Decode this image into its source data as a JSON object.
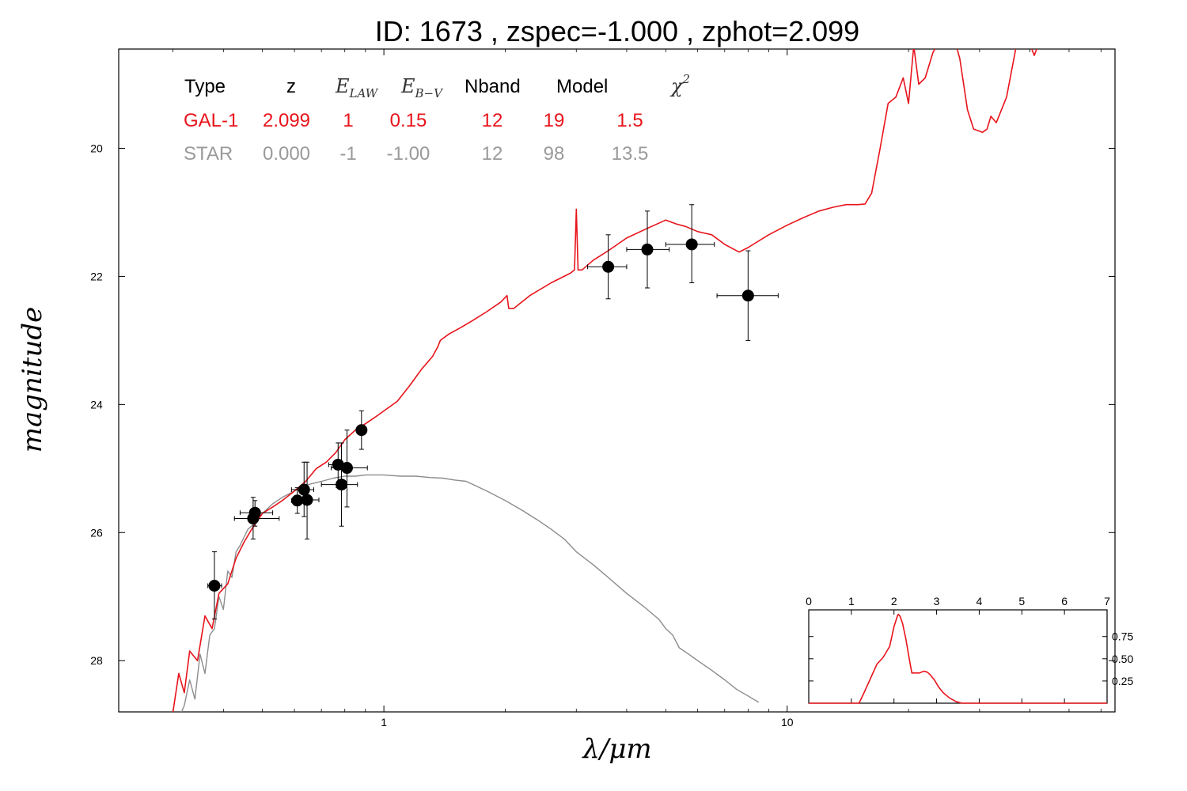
{
  "chart_data": [
    {
      "type": "line",
      "title": "ID:  1673  , zspec=-1.000 , zphot=2.099",
      "xlabel": "λ/μm",
      "ylabel": "magnitude",
      "x_scale": "log",
      "xlim": [
        0.22,
        65
      ],
      "ylim": [
        28.8,
        18.45
      ],
      "x_ticks": [
        1,
        10
      ],
      "x_tick_labels": [
        "1",
        "10"
      ],
      "y_ticks": [
        20,
        22,
        24,
        26,
        28
      ],
      "y_tick_labels": [
        "20",
        "22",
        "24",
        "26",
        "28"
      ],
      "grid": false,
      "colors": {
        "galaxy": "#e8141b",
        "star": "#8c8c8c",
        "points": "#000000"
      },
      "fit_table": {
        "headers": [
          "Type",
          "z",
          "E_LAW",
          "E_B-V",
          "Nband",
          "Model",
          "χ2"
        ],
        "header_plain": {
          "type": "Type",
          "z": "z",
          "nband": "Nband",
          "model": "Model"
        },
        "header_math": {
          "elaw_main": "E",
          "elaw_sub": "LAW",
          "ebv_main": "E",
          "ebv_sub": "B−V",
          "chi_main": "χ",
          "chi_sup": "2"
        },
        "rows": [
          {
            "type": "GAL-1",
            "z": "2.099",
            "elaw": "1",
            "ebv": "0.15",
            "nband": "12",
            "model": "19",
            "chi2": "1.5",
            "color": "#e8141b"
          },
          {
            "type": "STAR",
            "z": "0.000",
            "elaw": "-1",
            "ebv": "-1.00",
            "nband": "12",
            "model": "98",
            "chi2": "13.5",
            "color": "#9a9a9a"
          }
        ]
      },
      "points": [
        {
          "x": 0.38,
          "y": 26.83,
          "xerr": [
            0.366,
            0.396
          ],
          "yerr": [
            26.3,
            27.35
          ]
        },
        {
          "x": 0.474,
          "y": 25.78,
          "xerr": [
            0.426,
            0.55
          ],
          "yerr": [
            25.45,
            26.1
          ]
        },
        {
          "x": 0.479,
          "y": 25.69,
          "xerr": [
            0.44,
            0.53
          ],
          "yerr": [
            25.5,
            25.9
          ]
        },
        {
          "x": 0.61,
          "y": 25.5,
          "xerr": [
            0.59,
            0.63
          ],
          "yerr": [
            25.3,
            25.7
          ]
        },
        {
          "x": 0.634,
          "y": 25.33,
          "xerr": [
            0.59,
            0.67
          ],
          "yerr": [
            24.9,
            25.75
          ]
        },
        {
          "x": 0.645,
          "y": 25.49,
          "xerr": [
            0.6,
            0.69
          ],
          "yerr": [
            24.9,
            26.1
          ]
        },
        {
          "x": 0.77,
          "y": 24.94,
          "xerr": [
            0.73,
            0.79
          ],
          "yerr": [
            24.6,
            25.3
          ]
        },
        {
          "x": 0.785,
          "y": 25.25,
          "xerr": [
            0.7,
            0.86
          ],
          "yerr": [
            24.6,
            25.9
          ]
        },
        {
          "x": 0.81,
          "y": 24.99,
          "xerr": [
            0.74,
            0.91
          ],
          "yerr": [
            24.4,
            25.6
          ]
        },
        {
          "x": 0.88,
          "y": 24.4,
          "xerr": [
            0.86,
            0.9
          ],
          "yerr": [
            24.1,
            24.7
          ]
        },
        {
          "x": 3.6,
          "y": 21.85,
          "xerr": [
            3.2,
            4.0
          ],
          "yerr": [
            21.35,
            22.35
          ]
        },
        {
          "x": 4.5,
          "y": 21.58,
          "xerr": [
            4.0,
            5.1
          ],
          "yerr": [
            20.98,
            22.18
          ]
        },
        {
          "x": 5.8,
          "y": 21.5,
          "xerr": [
            5.0,
            6.6
          ],
          "yerr": [
            20.88,
            22.1
          ]
        },
        {
          "x": 8.0,
          "y": 22.3,
          "xerr": [
            6.7,
            9.5
          ],
          "yerr": [
            21.6,
            23.0
          ]
        }
      ],
      "series": [
        {
          "key": "galaxy",
          "x": [
            0.3,
            0.31,
            0.32,
            0.33,
            0.345,
            0.36,
            0.375,
            0.39,
            0.41,
            0.43,
            0.45,
            0.47,
            0.5,
            0.53,
            0.56,
            0.6,
            0.64,
            0.68,
            0.72,
            0.76,
            0.8,
            0.85,
            0.9,
            0.95,
            1.0,
            1.08,
            1.16,
            1.24,
            1.32,
            1.36,
            1.38,
            1.45,
            1.55,
            1.65,
            1.8,
            1.95,
            2.02,
            2.04,
            2.1,
            2.3,
            2.6,
            2.9,
            2.97,
            3.0,
            3.03,
            3.1,
            3.3,
            3.6,
            4.0,
            4.5,
            5.0,
            5.3,
            5.6,
            6.0,
            6.5,
            7.0,
            7.6,
            8.0,
            9.0,
            10.0,
            11.0,
            12.0,
            13.0,
            14.0,
            15.0,
            15.6,
            16.2,
            17.0,
            17.8,
            18.6,
            19.4,
            20.0,
            20.6,
            21.2,
            22.0,
            23.0,
            24.0,
            25.0,
            26.0,
            26.8,
            28.0,
            29.0,
            30.5,
            31.3,
            32.0,
            33.0,
            35.0,
            37.0,
            39.0,
            41.0,
            43.0,
            45.0,
            47.0,
            49.0,
            51.0,
            53.0,
            55.0,
            57.0
          ],
          "y": [
            28.8,
            28.2,
            28.5,
            27.85,
            28.0,
            27.3,
            27.5,
            26.95,
            26.8,
            26.4,
            26.15,
            25.95,
            25.7,
            25.6,
            25.5,
            25.35,
            25.2,
            25.0,
            24.9,
            24.75,
            24.55,
            24.4,
            24.3,
            24.2,
            24.1,
            23.95,
            23.7,
            23.45,
            23.25,
            23.1,
            23.0,
            22.9,
            22.8,
            22.7,
            22.55,
            22.4,
            22.3,
            22.5,
            22.5,
            22.3,
            22.1,
            21.95,
            21.9,
            20.95,
            21.9,
            21.9,
            21.75,
            21.6,
            21.4,
            21.25,
            21.12,
            21.18,
            21.22,
            21.3,
            21.35,
            21.5,
            21.62,
            21.55,
            21.35,
            21.2,
            21.08,
            20.98,
            20.92,
            20.88,
            20.88,
            20.87,
            20.7,
            20.0,
            19.3,
            19.2,
            18.9,
            19.3,
            18.4,
            19.0,
            18.9,
            18.5,
            18.3,
            18.15,
            18.3,
            18.6,
            19.4,
            19.7,
            19.75,
            19.7,
            19.5,
            19.6,
            19.2,
            18.4,
            18.2,
            18.55,
            18.2,
            18.05,
            18.3,
            18.15,
            18.0,
            18.2,
            17.9,
            18.0
          ]
        },
        {
          "key": "star",
          "x": [
            0.3,
            0.31,
            0.32,
            0.33,
            0.34,
            0.35,
            0.36,
            0.37,
            0.38,
            0.39,
            0.4,
            0.41,
            0.42,
            0.43,
            0.44,
            0.46,
            0.48,
            0.5,
            0.53,
            0.56,
            0.6,
            0.65,
            0.7,
            0.75,
            0.8,
            0.85,
            0.9,
            0.95,
            1.0,
            1.1,
            1.2,
            1.3,
            1.4,
            1.5,
            1.6,
            1.8,
            2.0,
            2.2,
            2.4,
            2.6,
            2.8,
            3.0,
            3.3,
            3.6,
            4.0,
            4.4,
            4.8,
            5.0,
            5.2,
            5.4,
            5.7,
            6.0,
            6.5,
            7.0,
            7.5,
            8.0,
            8.5
          ],
          "y": [
            29.2,
            28.9,
            28.7,
            28.3,
            28.6,
            27.9,
            28.2,
            27.6,
            27.5,
            27.0,
            27.2,
            26.6,
            26.7,
            26.3,
            26.2,
            25.95,
            25.85,
            25.7,
            25.55,
            25.45,
            25.35,
            25.25,
            25.2,
            25.15,
            25.12,
            25.12,
            25.1,
            25.1,
            25.1,
            25.12,
            25.12,
            25.14,
            25.15,
            25.18,
            25.2,
            25.35,
            25.5,
            25.65,
            25.8,
            25.95,
            26.1,
            26.3,
            26.5,
            26.7,
            26.95,
            27.15,
            27.35,
            27.5,
            27.6,
            27.8,
            27.9,
            28.0,
            28.15,
            28.3,
            28.45,
            28.55,
            28.65
          ]
        }
      ]
    },
    {
      "type": "line",
      "xlim": [
        0,
        7
      ],
      "ylim": [
        0,
        1.05
      ],
      "x_ticks": [
        0,
        1,
        2,
        3,
        4,
        5,
        6,
        7
      ],
      "x_tick_labels": [
        "0",
        "1",
        "2",
        "3",
        "4",
        "5",
        "6",
        "7"
      ],
      "y_ticks": [
        0.25,
        0.5,
        0.75
      ],
      "y_tick_labels": [
        "0.25",
        "0.50",
        "0.75"
      ],
      "series": [
        {
          "key": "pdz",
          "x": [
            0,
            1.18,
            1.3,
            1.45,
            1.6,
            1.75,
            1.9,
            2.0,
            2.08,
            2.1,
            2.14,
            2.2,
            2.28,
            2.35,
            2.42,
            2.5,
            2.6,
            2.7,
            2.78,
            2.85,
            2.95,
            3.05,
            3.15,
            3.3,
            3.45,
            3.55,
            3.6,
            7
          ],
          "y": [
            0,
            0,
            0.12,
            0.28,
            0.44,
            0.52,
            0.64,
            0.86,
            0.98,
            1.0,
            0.98,
            0.9,
            0.72,
            0.52,
            0.34,
            0.34,
            0.34,
            0.36,
            0.35,
            0.32,
            0.26,
            0.18,
            0.12,
            0.06,
            0.02,
            0.005,
            0,
            0
          ]
        }
      ],
      "colors": {
        "pdz": "#e8141b"
      }
    }
  ]
}
